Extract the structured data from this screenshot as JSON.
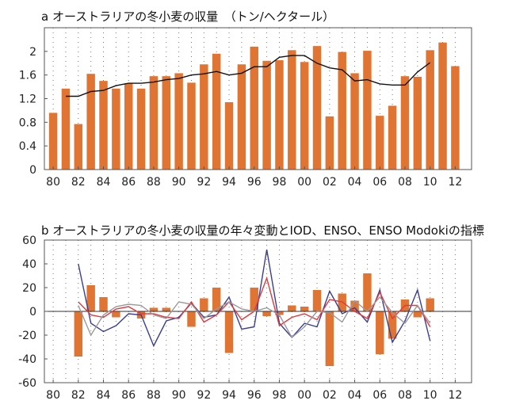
{
  "chart_data": [
    {
      "type": "bar",
      "title": "a オーストラリアの冬小麦の収量　（トン/ヘクタール）",
      "x": [
        1980,
        1981,
        1982,
        1983,
        1984,
        1985,
        1986,
        1987,
        1988,
        1989,
        1990,
        1991,
        1992,
        1993,
        1994,
        1995,
        1996,
        1997,
        1998,
        1999,
        2000,
        2001,
        2002,
        2003,
        2004,
        2005,
        2006,
        2007,
        2008,
        2009,
        2010,
        2011,
        2012
      ],
      "x_tick_labels": [
        "80",
        "82",
        "84",
        "86",
        "88",
        "90",
        "92",
        "94",
        "96",
        "98",
        "00",
        "02",
        "04",
        "06",
        "08",
        "10",
        "12"
      ],
      "x_tick_years": [
        1980,
        1982,
        1984,
        1986,
        1988,
        1990,
        1992,
        1994,
        1996,
        1998,
        2000,
        2002,
        2004,
        2006,
        2008,
        2010,
        2012
      ],
      "ylim": [
        0,
        2.4
      ],
      "y_ticks": [
        "0",
        "0.4",
        "0.8",
        "1.2",
        "1.6",
        "2"
      ],
      "y_tick_values": [
        0,
        0.4,
        0.8,
        1.2,
        1.6,
        2.0
      ],
      "grid": true,
      "series": [
        {
          "type": "bar",
          "color": "#e07533",
          "values": [
            0.96,
            1.37,
            0.77,
            1.62,
            1.5,
            1.37,
            1.46,
            1.37,
            1.58,
            1.58,
            1.63,
            1.47,
            1.78,
            1.96,
            1.14,
            1.78,
            2.08,
            1.84,
            1.85,
            2.02,
            1.82,
            2.09,
            0.9,
            1.99,
            1.63,
            2.01,
            0.91,
            1.08,
            1.58,
            1.57,
            2.02,
            2.15,
            1.75
          ]
        },
        {
          "type": "line",
          "color": "#111111",
          "x": [
            1981,
            1982,
            1983,
            1984,
            1985,
            1986,
            1987,
            1988,
            1989,
            1990,
            1991,
            1992,
            1993,
            1994,
            1995,
            1996,
            1997,
            1998,
            1999,
            2000,
            2001,
            2002,
            2003,
            2004,
            2005,
            2006,
            2007,
            2008,
            2009,
            2010
          ],
          "values": [
            1.24,
            1.24,
            1.32,
            1.34,
            1.42,
            1.46,
            1.46,
            1.48,
            1.52,
            1.54,
            1.6,
            1.62,
            1.66,
            1.6,
            1.63,
            1.74,
            1.74,
            1.9,
            1.93,
            1.93,
            1.8,
            1.72,
            1.69,
            1.5,
            1.52,
            1.45,
            1.43,
            1.43,
            1.65,
            1.81
          ]
        }
      ]
    },
    {
      "type": "bar",
      "title": "b オーストラリアの冬小麦の収量の年々変動とIOD、ENSO、ENSO Modokiの指標",
      "x": [
        1980,
        1981,
        1982,
        1983,
        1984,
        1985,
        1986,
        1987,
        1988,
        1989,
        1990,
        1991,
        1992,
        1993,
        1994,
        1995,
        1996,
        1997,
        1998,
        1999,
        2000,
        2001,
        2002,
        2003,
        2004,
        2005,
        2006,
        2007,
        2008,
        2009,
        2010,
        2011,
        2012
      ],
      "x_tick_labels": [
        "80",
        "82",
        "84",
        "86",
        "88",
        "90",
        "92",
        "94",
        "96",
        "98",
        "00",
        "02",
        "04",
        "06",
        "08",
        "10",
        "12"
      ],
      "x_tick_years": [
        1980,
        1982,
        1984,
        1986,
        1988,
        1990,
        1992,
        1994,
        1996,
        1998,
        2000,
        2002,
        2004,
        2006,
        2008,
        2010,
        2012
      ],
      "ylim": [
        -60,
        60
      ],
      "y_ticks": [
        "60",
        "40",
        "20",
        "0",
        "-20",
        "-40",
        "-60"
      ],
      "y_tick_values": [
        60,
        40,
        20,
        0,
        -20,
        -40,
        -60
      ],
      "grid": true,
      "series": [
        {
          "type": "bar",
          "color": "#e07533",
          "x": [
            1982,
            1983,
            1984,
            1985,
            1986,
            1987,
            1988,
            1989,
            1990,
            1991,
            1992,
            1993,
            1994,
            1995,
            1996,
            1997,
            1998,
            1999,
            2000,
            2001,
            2002,
            2003,
            2004,
            2005,
            2006,
            2007,
            2008,
            2009,
            2010
          ],
          "values": [
            -38,
            22,
            12,
            -5,
            0,
            -6,
            3,
            3,
            0,
            -13,
            11,
            20,
            -35,
            0,
            20,
            -4,
            -3,
            5,
            4,
            18,
            -46,
            15,
            9,
            32,
            -36,
            -23,
            10,
            -5,
            11
          ]
        },
        {
          "type": "line",
          "color": "#3a3f8f",
          "x": [
            1982,
            1983,
            1984,
            1985,
            1986,
            1987,
            1988,
            1989,
            1990,
            1991,
            1992,
            1993,
            1994,
            1995,
            1996,
            1997,
            1998,
            1999,
            2000,
            2001,
            2002,
            2003,
            2004,
            2005,
            2006,
            2007,
            2008,
            2009,
            2010
          ],
          "values": [
            40,
            -10,
            -17,
            -12,
            -2,
            -3,
            -29,
            -8,
            -5,
            7,
            -5,
            -3,
            12,
            -15,
            -13,
            52,
            -10,
            -22,
            -10,
            -13,
            17,
            -2,
            3,
            -9,
            18,
            -26,
            -8,
            18,
            -25
          ]
        },
        {
          "type": "line",
          "color": "#e0393e",
          "x": [
            1982,
            1983,
            1984,
            1985,
            1986,
            1987,
            1988,
            1989,
            1990,
            1991,
            1992,
            1993,
            1994,
            1995,
            1996,
            1997,
            1998,
            1999,
            2000,
            2001,
            2002,
            2003,
            2004,
            2005,
            2006,
            2007,
            2008,
            2009,
            2010
          ],
          "values": [
            8,
            -3,
            -5,
            2,
            4,
            -2,
            -2,
            -5,
            -6,
            8,
            -9,
            -3,
            8,
            -7,
            0,
            28,
            -12,
            -5,
            -2,
            -7,
            10,
            8,
            0,
            -6,
            16,
            -6,
            5,
            5,
            -13
          ]
        },
        {
          "type": "line",
          "color": "#9a9a9a",
          "x": [
            1982,
            1983,
            1984,
            1985,
            1986,
            1987,
            1988,
            1989,
            1990,
            1991,
            1992,
            1993,
            1994,
            1995,
            1996,
            1997,
            1998,
            1999,
            2000,
            2001,
            2002,
            2003,
            2004,
            2005,
            2006,
            2007,
            2008,
            2009,
            2010
          ],
          "values": [
            5,
            -20,
            -3,
            4,
            6,
            5,
            -3,
            -6,
            8,
            6,
            -6,
            2,
            8,
            2,
            0,
            3,
            -3,
            -22,
            -13,
            0,
            -1,
            -9,
            9,
            0,
            12,
            -1,
            -10,
            5,
            -10
          ]
        }
      ]
    }
  ]
}
